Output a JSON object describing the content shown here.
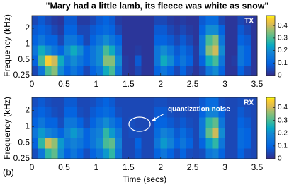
{
  "chart_data": [
    {
      "type": "heatmap",
      "title": "\"Mary had a little lamb, its fleece was white as snow\"",
      "label": "TX",
      "ylabel": "Frequency (kHz)",
      "xbins": [
        0,
        0.1,
        0.2,
        0.3,
        0.4,
        0.5,
        0.6,
        0.7,
        0.8,
        0.9,
        1,
        1.1,
        1.2,
        1.3,
        1.4,
        1.5,
        1.6,
        1.7,
        1.8,
        1.9,
        2,
        2.1,
        2.2,
        2.3,
        2.4,
        2.5,
        2.6,
        2.7,
        2.8,
        2.9,
        3,
        3.1,
        3.2,
        3.3,
        3.4,
        3.5
      ],
      "ybins": [
        0.25,
        0.39,
        0.61,
        0.95,
        1.48,
        2.3,
        3.5
      ],
      "z": [
        [
          0.05,
          0.15,
          0.3,
          0.35,
          0.2,
          0.1,
          0.15,
          0.1,
          0.05,
          0.1,
          0.15,
          0.25,
          0.3,
          0.15,
          0.03,
          0.02,
          0.05,
          0.02,
          0.02,
          0.1,
          0.15,
          0.1,
          0.05,
          0.1,
          0.05,
          0.02,
          0.05,
          0.15,
          0.2,
          0.1,
          0.02,
          0.02,
          0.1,
          0.05,
          0.02
        ],
        [
          0.1,
          0.3,
          0.45,
          0.4,
          0.25,
          0.15,
          0.2,
          0.15,
          0.1,
          0.15,
          0.2,
          0.35,
          0.35,
          0.2,
          0.03,
          0.02,
          0.08,
          0.02,
          0.02,
          0.15,
          0.25,
          0.2,
          0.1,
          0.15,
          0.1,
          0.03,
          0.1,
          0.25,
          0.3,
          0.15,
          0.02,
          0.03,
          0.15,
          0.1,
          0.02
        ],
        [
          0.15,
          0.25,
          0.2,
          0.15,
          0.1,
          0.2,
          0.25,
          0.2,
          0.1,
          0.15,
          0.2,
          0.3,
          0.25,
          0.15,
          0.02,
          0.02,
          0.03,
          0.02,
          0.02,
          0.15,
          0.2,
          0.15,
          0.08,
          0.12,
          0.08,
          0.03,
          0.15,
          0.35,
          0.4,
          0.2,
          0.02,
          0.02,
          0.15,
          0.1,
          0.02
        ],
        [
          0.1,
          0.15,
          0.1,
          0.1,
          0.05,
          0.15,
          0.15,
          0.1,
          0.05,
          0.1,
          0.15,
          0.2,
          0.15,
          0.1,
          0.02,
          0.02,
          0.02,
          0.02,
          0.02,
          0.1,
          0.1,
          0.08,
          0.05,
          0.08,
          0.05,
          0.02,
          0.15,
          0.3,
          0.35,
          0.15,
          0.02,
          0.02,
          0.1,
          0.08,
          0.02
        ],
        [
          0.08,
          0.1,
          0.08,
          0.05,
          0.03,
          0.1,
          0.1,
          0.05,
          0.05,
          0.08,
          0.1,
          0.12,
          0.1,
          0.05,
          0.02,
          0.02,
          0.02,
          0.02,
          0.02,
          0.08,
          0.08,
          0.05,
          0.03,
          0.05,
          0.03,
          0.02,
          0.1,
          0.2,
          0.2,
          0.1,
          0.02,
          0.02,
          0.08,
          0.05,
          0.02
        ],
        [
          0.05,
          0.08,
          0.05,
          0.03,
          0.02,
          0.08,
          0.08,
          0.03,
          0.03,
          0.05,
          0.08,
          0.1,
          0.08,
          0.03,
          0.02,
          0.02,
          0.02,
          0.02,
          0.02,
          0.05,
          0.05,
          0.03,
          0.02,
          0.03,
          0.02,
          0.02,
          0.08,
          0.12,
          0.12,
          0.05,
          0.02,
          0.02,
          0.05,
          0.03,
          0.02
        ]
      ],
      "xlim": [
        0,
        3.5
      ],
      "xticks": [
        0,
        0.5,
        1,
        1.5,
        2,
        2.5,
        3,
        3.5
      ],
      "ylim": [
        0.25,
        3.5
      ],
      "yticks": [
        0.25,
        0.5,
        1,
        2
      ],
      "yscale": "log",
      "colormap": "parula",
      "clim": [
        0,
        0.48
      ],
      "cticks": [
        0,
        0.1,
        0.2,
        0.3,
        0.4
      ]
    },
    {
      "type": "heatmap",
      "label": "RX",
      "ylabel": "Frequency (kHz)",
      "xlabel": "Time (secs)",
      "panel_label": "(b)",
      "annotation": "quantization noise",
      "xbins": [
        0,
        0.1,
        0.2,
        0.3,
        0.4,
        0.5,
        0.6,
        0.7,
        0.8,
        0.9,
        1,
        1.1,
        1.2,
        1.3,
        1.4,
        1.5,
        1.6,
        1.7,
        1.8,
        1.9,
        2,
        2.1,
        2.2,
        2.3,
        2.4,
        2.5,
        2.6,
        2.7,
        2.8,
        2.9,
        3,
        3.1,
        3.2,
        3.3,
        3.4,
        3.5
      ],
      "ybins": [
        0.25,
        0.39,
        0.61,
        0.95,
        1.48,
        2.3,
        3.5
      ],
      "z": [
        [
          0.06,
          0.15,
          0.28,
          0.32,
          0.2,
          0.1,
          0.15,
          0.1,
          0.06,
          0.1,
          0.15,
          0.22,
          0.28,
          0.15,
          0.05,
          0.05,
          0.08,
          0.05,
          0.05,
          0.1,
          0.15,
          0.1,
          0.06,
          0.1,
          0.06,
          0.05,
          0.06,
          0.15,
          0.18,
          0.1,
          0.05,
          0.05,
          0.1,
          0.06,
          0.05
        ],
        [
          0.1,
          0.28,
          0.4,
          0.36,
          0.22,
          0.15,
          0.18,
          0.15,
          0.1,
          0.15,
          0.2,
          0.3,
          0.32,
          0.18,
          0.05,
          0.05,
          0.1,
          0.05,
          0.05,
          0.15,
          0.22,
          0.18,
          0.1,
          0.15,
          0.1,
          0.05,
          0.1,
          0.22,
          0.28,
          0.15,
          0.05,
          0.05,
          0.12,
          0.1,
          0.05
        ],
        [
          0.15,
          0.22,
          0.18,
          0.15,
          0.1,
          0.18,
          0.22,
          0.18,
          0.1,
          0.15,
          0.18,
          0.28,
          0.22,
          0.15,
          0.05,
          0.06,
          0.06,
          0.05,
          0.05,
          0.12,
          0.18,
          0.15,
          0.08,
          0.12,
          0.08,
          0.05,
          0.15,
          0.32,
          0.4,
          0.2,
          0.05,
          0.05,
          0.12,
          0.1,
          0.05
        ],
        [
          0.1,
          0.15,
          0.1,
          0.1,
          0.06,
          0.15,
          0.15,
          0.1,
          0.06,
          0.1,
          0.15,
          0.2,
          0.15,
          0.1,
          0.05,
          0.06,
          0.05,
          0.05,
          0.05,
          0.1,
          0.1,
          0.08,
          0.06,
          0.08,
          0.06,
          0.05,
          0.15,
          0.28,
          0.32,
          0.15,
          0.05,
          0.05,
          0.1,
          0.08,
          0.05
        ],
        [
          0.08,
          0.1,
          0.08,
          0.06,
          0.05,
          0.1,
          0.1,
          0.06,
          0.05,
          0.08,
          0.1,
          0.12,
          0.1,
          0.06,
          0.05,
          0.05,
          0.05,
          0.05,
          0.05,
          0.08,
          0.08,
          0.06,
          0.05,
          0.06,
          0.05,
          0.05,
          0.1,
          0.18,
          0.18,
          0.1,
          0.05,
          0.05,
          0.08,
          0.06,
          0.05
        ],
        [
          0.06,
          0.08,
          0.06,
          0.05,
          0.05,
          0.08,
          0.08,
          0.05,
          0.05,
          0.06,
          0.08,
          0.1,
          0.08,
          0.05,
          0.05,
          0.05,
          0.05,
          0.05,
          0.05,
          0.06,
          0.06,
          0.05,
          0.05,
          0.05,
          0.05,
          0.05,
          0.08,
          0.12,
          0.12,
          0.06,
          0.05,
          0.05,
          0.06,
          0.05,
          0.05
        ]
      ],
      "xlim": [
        0,
        3.5
      ],
      "xticks": [
        0,
        0.5,
        1,
        1.5,
        2,
        2.5,
        3,
        3.5
      ],
      "ylim": [
        0.25,
        3.5
      ],
      "yticks": [
        0.25,
        0.5,
        1,
        2
      ],
      "yscale": "log",
      "colormap": "parula",
      "clim": [
        0,
        0.48
      ],
      "cticks": [
        0,
        0.1,
        0.2,
        0.3,
        0.4
      ]
    }
  ]
}
